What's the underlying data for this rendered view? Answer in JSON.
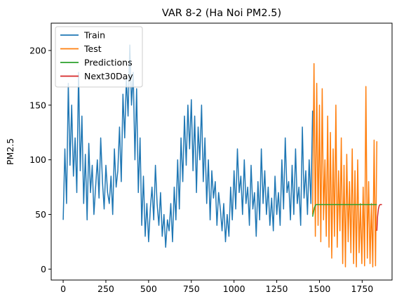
{
  "chart_data": {
    "type": "line",
    "title": "VAR 8-2 (Ha Noi PM2.5)",
    "xlabel": "",
    "ylabel": "PM2.5",
    "xlim": [
      -70,
      1925
    ],
    "ylim": [
      -10,
      225
    ],
    "xticks": [
      0,
      250,
      500,
      750,
      1000,
      1250,
      1500,
      1750
    ],
    "yticks": [
      0,
      50,
      100,
      150,
      200
    ],
    "grid": false,
    "legend_position": "top-left",
    "series": [
      {
        "name": "Train",
        "color": "#1f77b4",
        "x": [
          0,
          10,
          20,
          30,
          40,
          50,
          60,
          70,
          80,
          90,
          100,
          110,
          120,
          130,
          140,
          150,
          160,
          170,
          180,
          190,
          200,
          210,
          220,
          230,
          240,
          250,
          260,
          270,
          280,
          290,
          300,
          310,
          320,
          330,
          340,
          350,
          360,
          370,
          380,
          390,
          400,
          410,
          420,
          430,
          440,
          450,
          460,
          470,
          480,
          490,
          500,
          510,
          520,
          530,
          540,
          550,
          560,
          570,
          580,
          590,
          600,
          610,
          620,
          630,
          640,
          650,
          660,
          670,
          680,
          690,
          700,
          710,
          720,
          730,
          740,
          750,
          760,
          770,
          780,
          790,
          800,
          810,
          820,
          830,
          840,
          850,
          860,
          870,
          880,
          890,
          900,
          910,
          920,
          930,
          940,
          950,
          960,
          970,
          980,
          990,
          1000,
          1010,
          1020,
          1030,
          1040,
          1050,
          1060,
          1070,
          1080,
          1090,
          1100,
          1110,
          1120,
          1130,
          1140,
          1150,
          1160,
          1170,
          1180,
          1190,
          1200,
          1210,
          1220,
          1230,
          1240,
          1250,
          1260,
          1270,
          1280,
          1290,
          1300,
          1310,
          1320,
          1330,
          1340,
          1350,
          1360,
          1370,
          1380,
          1390,
          1400,
          1410,
          1420,
          1430,
          1440,
          1450,
          1460
        ],
        "values": [
          45,
          110,
          60,
          170,
          95,
          150,
          85,
          120,
          70,
          180,
          90,
          140,
          60,
          105,
          45,
          115,
          70,
          95,
          50,
          75,
          100,
          65,
          120,
          80,
          55,
          95,
          70,
          60,
          85,
          50,
          110,
          75,
          90,
          130,
          80,
          160,
          120,
          175,
          140,
          205,
          150,
          180,
          100,
          165,
          70,
          120,
          40,
          85,
          30,
          60,
          25,
          55,
          75,
          45,
          95,
          60,
          40,
          70,
          30,
          50,
          20,
          45,
          35,
          60,
          25,
          75,
          45,
          100,
          55,
          120,
          80,
          140,
          95,
          150,
          110,
          155,
          90,
          140,
          70,
          130,
          100,
          150,
          80,
          120,
          60,
          100,
          45,
          90,
          65,
          80,
          40,
          70,
          55,
          35,
          60,
          25,
          50,
          30,
          75,
          45,
          90,
          55,
          110,
          70,
          85,
          50,
          100,
          60,
          75,
          40,
          95,
          55,
          70,
          30,
          80,
          45,
          110,
          60,
          90,
          50,
          75,
          40,
          65,
          35,
          85,
          50,
          70,
          40,
          100,
          55,
          120,
          70,
          80,
          45,
          95,
          50,
          110,
          60,
          75,
          40,
          130,
          65,
          90,
          50,
          100,
          60,
          145
        ]
      },
      {
        "name": "Test",
        "color": "#ff7f0e",
        "x": [
          1460,
          1468,
          1476,
          1484,
          1492,
          1500,
          1508,
          1516,
          1524,
          1532,
          1540,
          1548,
          1556,
          1564,
          1572,
          1580,
          1588,
          1596,
          1604,
          1612,
          1620,
          1628,
          1636,
          1644,
          1652,
          1660,
          1668,
          1676,
          1684,
          1692,
          1700,
          1708,
          1716,
          1724,
          1732,
          1740,
          1748,
          1756,
          1764,
          1772,
          1780,
          1788,
          1796,
          1804,
          1812,
          1820,
          1828,
          1836
        ],
        "values": [
          50,
          188,
          30,
          170,
          40,
          150,
          25,
          165,
          45,
          100,
          30,
          140,
          20,
          125,
          10,
          110,
          30,
          150,
          20,
          90,
          35,
          120,
          5,
          95,
          2,
          105,
          25,
          80,
          15,
          110,
          5,
          90,
          2,
          100,
          15,
          60,
          5,
          75,
          3,
          167,
          10,
          80,
          5,
          60,
          2,
          118,
          3,
          117
        ]
      },
      {
        "name": "Predictions",
        "color": "#2ca02c",
        "x": [
          1460,
          1465,
          1470,
          1475,
          1480,
          1490,
          1500,
          1550,
          1600,
          1650,
          1700,
          1750,
          1800,
          1836
        ],
        "values": [
          48,
          52,
          56,
          58,
          59,
          59,
          59,
          59,
          59,
          59,
          59,
          59,
          59,
          59
        ]
      },
      {
        "name": "Next30Day",
        "color": "#d62728",
        "x": [
          1836,
          1840,
          1845,
          1850,
          1855,
          1860,
          1866
        ],
        "values": [
          35,
          48,
          55,
          58,
          59,
          59,
          59
        ]
      }
    ]
  }
}
